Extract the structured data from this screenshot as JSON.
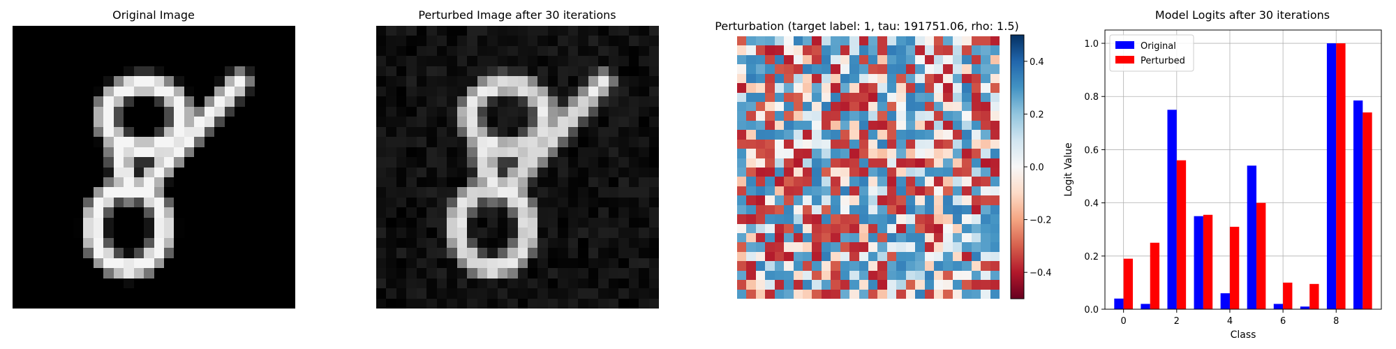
{
  "panels": {
    "original": {
      "title": "Original Image"
    },
    "perturbed": {
      "title": "Perturbed Image after 30 iterations"
    },
    "perturbation": {
      "title": "Perturbation (target label: 1, tau: 191751.06, rho: 1.5)",
      "colorbar_ticks": [
        0.4,
        0.2,
        0.0,
        -0.2,
        -0.4
      ],
      "colorbar_tick_labels": [
        "0.4",
        "0.2",
        "0.0",
        "−0.2",
        "−0.4"
      ],
      "range": [
        -0.5,
        0.5
      ],
      "colormap": "RdBu"
    }
  },
  "chart_data": {
    "type": "bar",
    "title": "Model Logits after 30 iterations",
    "xlabel": "Class",
    "ylabel": "Logit Value",
    "categories": [
      0,
      1,
      2,
      3,
      4,
      5,
      6,
      7,
      8,
      9
    ],
    "x_ticks": [
      "0",
      "2",
      "4",
      "6",
      "8"
    ],
    "y_ticks": [
      "0.0",
      "0.2",
      "0.4",
      "0.6",
      "0.8",
      "1.0"
    ],
    "ylim": [
      0,
      1.05
    ],
    "grid": true,
    "legend_position": "upper-left",
    "series": [
      {
        "name": "Original",
        "color": "#0000ff",
        "values": [
          0.04,
          0.02,
          0.75,
          0.35,
          0.06,
          0.54,
          0.02,
          0.01,
          1.0,
          0.785
        ]
      },
      {
        "name": "Perturbed",
        "color": "#ff0000",
        "values": [
          0.19,
          0.25,
          0.56,
          0.355,
          0.31,
          0.4,
          0.1,
          0.095,
          1.0,
          0.74
        ]
      }
    ]
  }
}
